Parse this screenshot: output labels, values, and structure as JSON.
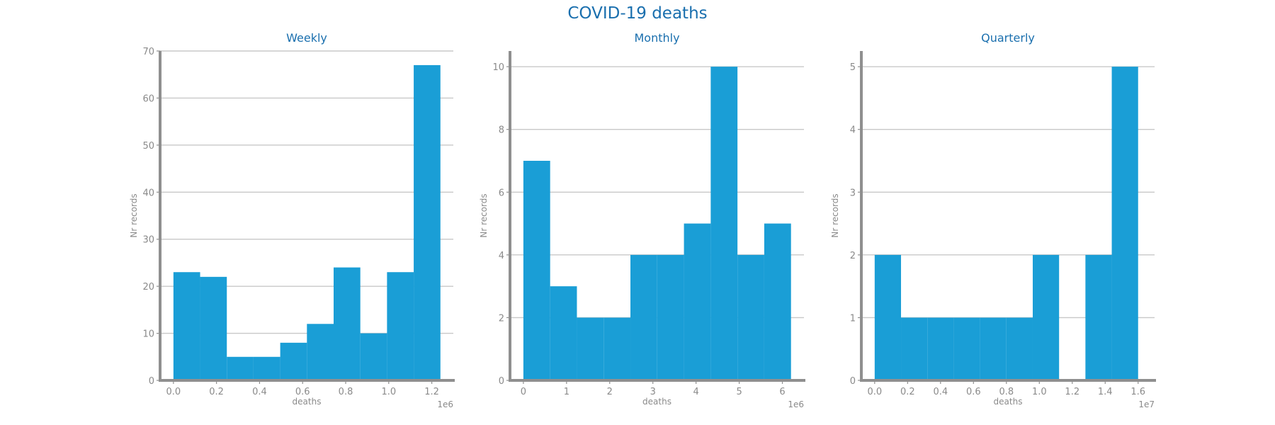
{
  "title": "COVID-19 deaths",
  "colors": {
    "bar": "#1a9ed6",
    "title": "#1a6fae",
    "axis": "#8f8f8f",
    "grid": "#c8c8c8",
    "text": "#8a8a8a"
  },
  "chart_data": [
    {
      "type": "bar",
      "title": "Weekly",
      "xlabel": "deaths",
      "ylabel": "Nr records",
      "x_offset_label": "1e6",
      "xlim": [
        -0.062,
        1.3
      ],
      "ylim": [
        0,
        70
      ],
      "xticks": [
        0.0,
        0.2,
        0.4,
        0.6,
        0.8,
        1.0,
        1.2
      ],
      "xtick_labels": [
        "0.0",
        "0.2",
        "0.4",
        "0.6",
        "0.8",
        "1.0",
        "1.2"
      ],
      "yticks": [
        0,
        10,
        20,
        30,
        40,
        50,
        60,
        70
      ],
      "ytick_labels": [
        "0",
        "10",
        "20",
        "30",
        "40",
        "50",
        "60",
        "70"
      ],
      "bin_edges": [
        0.0,
        0.124,
        0.248,
        0.372,
        0.496,
        0.62,
        0.744,
        0.868,
        0.992,
        1.116,
        1.24
      ],
      "values": [
        23,
        22,
        5,
        5,
        8,
        12,
        24,
        10,
        23,
        67
      ],
      "grid": true
    },
    {
      "type": "bar",
      "title": "Monthly",
      "xlabel": "deaths",
      "ylabel": "Nr records",
      "x_offset_label": "1e6",
      "xlim": [
        -0.31,
        6.5
      ],
      "ylim": [
        0,
        10.5
      ],
      "xticks": [
        0,
        1,
        2,
        3,
        4,
        5,
        6
      ],
      "xtick_labels": [
        "0",
        "1",
        "2",
        "3",
        "4",
        "5",
        "6"
      ],
      "yticks": [
        0,
        2,
        4,
        6,
        8,
        10
      ],
      "ytick_labels": [
        "0",
        "2",
        "4",
        "6",
        "8",
        "10"
      ],
      "bin_edges": [
        0.0,
        0.62,
        1.24,
        1.86,
        2.48,
        3.1,
        3.72,
        4.34,
        4.96,
        5.58,
        6.2
      ],
      "values": [
        7,
        3,
        2,
        2,
        4,
        4,
        5,
        10,
        4,
        5
      ],
      "grid": true
    },
    {
      "type": "bar",
      "title": "Quarterly",
      "xlabel": "deaths",
      "ylabel": "Nr records",
      "x_offset_label": "1e7",
      "xlim": [
        -0.081,
        1.7
      ],
      "ylim": [
        0,
        5.25
      ],
      "xticks": [
        0.0,
        0.2,
        0.4,
        0.6,
        0.8,
        1.0,
        1.2,
        1.4,
        1.6
      ],
      "xtick_labels": [
        "0.0",
        "0.2",
        "0.4",
        "0.6",
        "0.8",
        "1.0",
        "1.2",
        "1.4",
        "1.6"
      ],
      "yticks": [
        0,
        1,
        2,
        3,
        4,
        5
      ],
      "ytick_labels": [
        "0",
        "1",
        "2",
        "3",
        "4",
        "5"
      ],
      "bin_edges": [
        0.0,
        0.16,
        0.32,
        0.48,
        0.64,
        0.8,
        0.96,
        1.12,
        1.28,
        1.44,
        1.6
      ],
      "values": [
        2,
        1,
        1,
        1,
        1,
        1,
        2,
        0,
        2,
        5
      ],
      "grid": true
    }
  ]
}
